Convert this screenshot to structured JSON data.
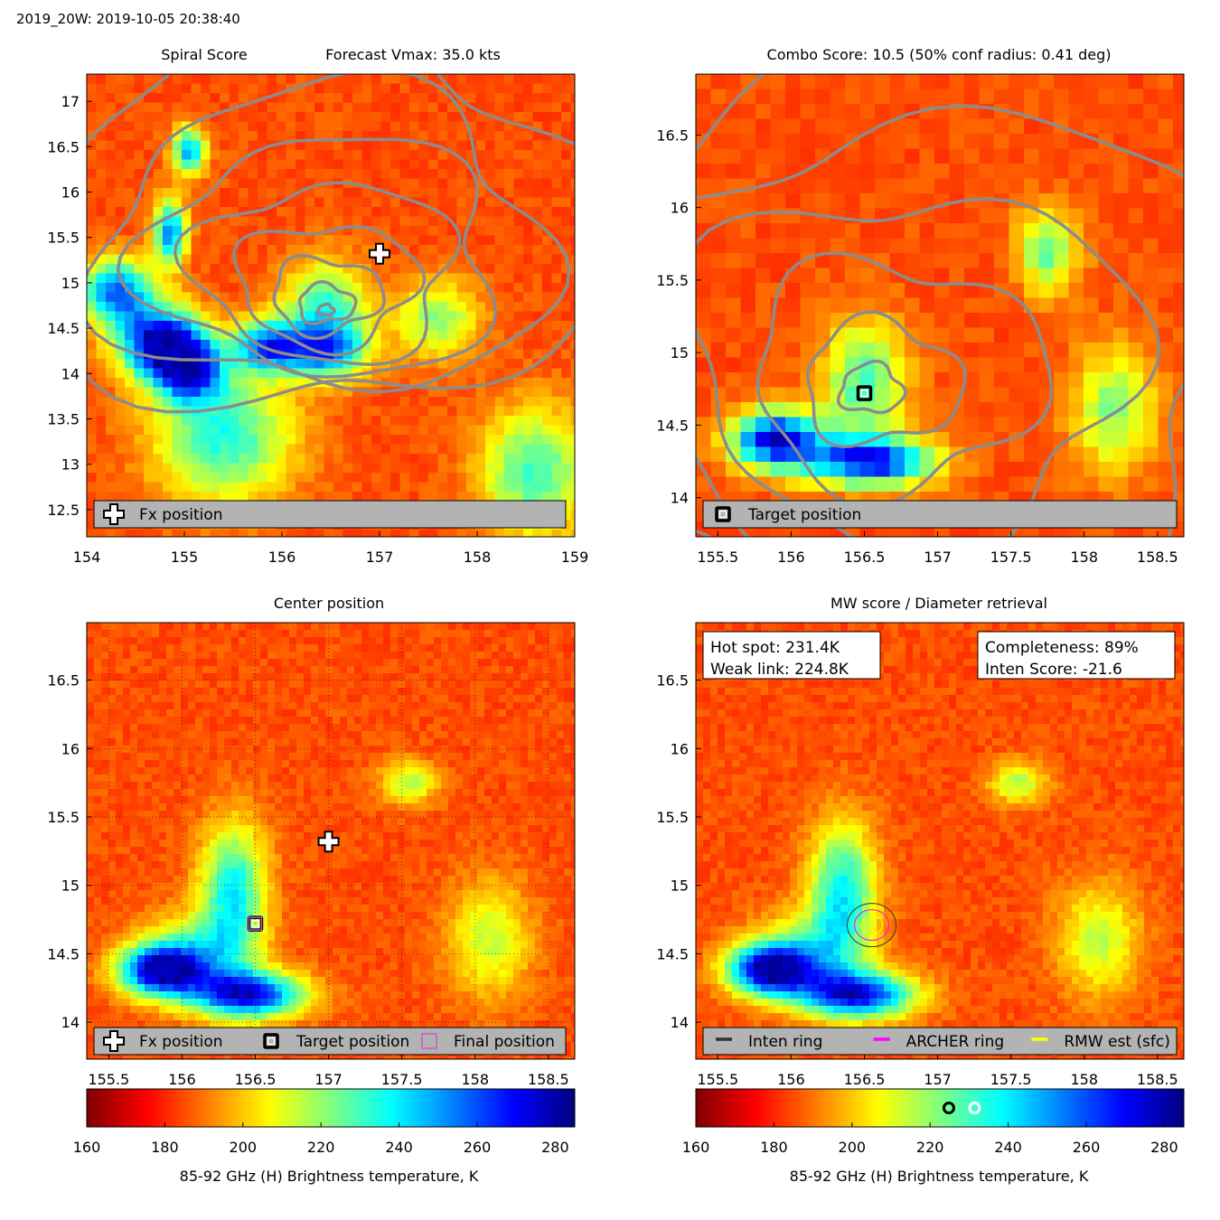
{
  "figure_title": "2019_20W: 2019-10-05 20:38:40",
  "colors": {
    "background": "#ffffff",
    "contour": "#8c8c8c",
    "legend_box": "#b3b3b3",
    "archer_ring": "#ff00ff",
    "rmw_est": "#ffff00",
    "inten_ring": "#333333",
    "final_marker": "#cc44cc"
  },
  "chart_data": [
    {
      "type": "heatmap",
      "panel": "top-left",
      "title": "Spiral Score",
      "title_right": "Forecast Vmax: 35.0 kts",
      "x_ticks": [
        "154",
        "155",
        "156",
        "157",
        "158",
        "159"
      ],
      "y_ticks": [
        "12.5",
        "13",
        "13.5",
        "14",
        "14.5",
        "15",
        "15.5",
        "16",
        "16.5",
        "17"
      ],
      "xlim": [
        154,
        159
      ],
      "ylim": [
        12.2,
        17.3
      ],
      "grid": false,
      "legend_placement": "bottom",
      "legend": [
        {
          "icon": "plus-icon",
          "label": "Fx position"
        }
      ],
      "markers": [
        {
          "type": "plus",
          "name": "Fx position",
          "x": 157.0,
          "y": 15.32
        }
      ],
      "hot_spots": [
        {
          "x": 154.75,
          "y": 14.35,
          "amp": 1.0,
          "sx": 0.3,
          "sy": 0.28
        },
        {
          "x": 155.85,
          "y": 14.3,
          "amp": 0.75,
          "sx": 0.25,
          "sy": 0.2
        },
        {
          "x": 156.45,
          "y": 14.25,
          "amp": 0.7,
          "sx": 0.3,
          "sy": 0.22
        },
        {
          "x": 155.05,
          "y": 14.05,
          "amp": 0.8,
          "sx": 0.25,
          "sy": 0.25
        },
        {
          "x": 154.3,
          "y": 14.9,
          "amp": 0.8,
          "sx": 0.25,
          "sy": 0.25
        },
        {
          "x": 155.4,
          "y": 13.3,
          "amp": 0.55,
          "sx": 0.5,
          "sy": 0.5
        },
        {
          "x": 156.45,
          "y": 14.75,
          "amp": 0.5,
          "sx": 0.3,
          "sy": 0.35
        },
        {
          "x": 155.05,
          "y": 16.45,
          "amp": 0.7,
          "sx": 0.12,
          "sy": 0.18
        },
        {
          "x": 154.85,
          "y": 15.55,
          "amp": 0.75,
          "sx": 0.12,
          "sy": 0.25
        },
        {
          "x": 157.6,
          "y": 14.6,
          "amp": 0.4,
          "sx": 0.3,
          "sy": 0.3
        },
        {
          "x": 158.6,
          "y": 12.9,
          "amp": 0.5,
          "sx": 0.4,
          "sy": 0.5
        }
      ],
      "contour_center": {
        "x": 156.45,
        "y": 14.67
      }
    },
    {
      "type": "heatmap",
      "panel": "top-right",
      "title": "Combo Score: 10.5  (50% conf radius: 0.41 deg)",
      "x_ticks": [
        "155.5",
        "156",
        "156.5",
        "157",
        "157.5",
        "158",
        "158.5"
      ],
      "y_ticks": [
        "14",
        "14.5",
        "15",
        "15.5",
        "16",
        "16.5"
      ],
      "xlim": [
        155.35,
        158.68
      ],
      "ylim": [
        13.73,
        16.92
      ],
      "grid": false,
      "legend_placement": "bottom",
      "legend": [
        {
          "icon": "square-icon",
          "label": "Target position"
        }
      ],
      "markers": [
        {
          "type": "square",
          "name": "Target position",
          "x": 156.5,
          "y": 14.72
        }
      ],
      "hot_spots": [
        {
          "x": 155.9,
          "y": 14.4,
          "amp": 1.0,
          "sx": 0.22,
          "sy": 0.14
        },
        {
          "x": 156.55,
          "y": 14.25,
          "amp": 0.9,
          "sx": 0.3,
          "sy": 0.12
        },
        {
          "x": 156.5,
          "y": 14.8,
          "amp": 0.5,
          "sx": 0.2,
          "sy": 0.3
        },
        {
          "x": 157.75,
          "y": 15.7,
          "amp": 0.45,
          "sx": 0.15,
          "sy": 0.2
        },
        {
          "x": 158.2,
          "y": 14.6,
          "amp": 0.4,
          "sx": 0.2,
          "sy": 0.3
        }
      ],
      "contour_center": {
        "x": 156.5,
        "y": 14.72
      }
    },
    {
      "type": "heatmap",
      "panel": "bottom-left",
      "title": "Center position",
      "x_ticks": [
        "155.5",
        "156",
        "156.5",
        "157",
        "157.5",
        "158",
        "158.5"
      ],
      "y_ticks": [
        "14",
        "14.5",
        "15",
        "15.5",
        "16",
        "16.5"
      ],
      "xlim": [
        155.35,
        158.68
      ],
      "ylim": [
        13.73,
        16.92
      ],
      "grid": true,
      "legend_placement": "bottom",
      "legend": [
        {
          "icon": "plus-icon",
          "label": "Fx position"
        },
        {
          "icon": "square-icon",
          "label": "Target position"
        },
        {
          "icon": "square-outline-icon",
          "label": "Final position"
        }
      ],
      "markers": [
        {
          "type": "plus",
          "name": "Fx position",
          "x": 157.0,
          "y": 15.32
        },
        {
          "type": "square",
          "name": "Target position",
          "x": 156.5,
          "y": 14.72
        },
        {
          "type": "final",
          "name": "Final position",
          "x": 156.5,
          "y": 14.72
        }
      ],
      "hot_spots": [
        {
          "x": 155.85,
          "y": 14.38,
          "amp": 1.0,
          "sx": 0.2,
          "sy": 0.13
        },
        {
          "x": 156.45,
          "y": 14.2,
          "amp": 0.95,
          "sx": 0.27,
          "sy": 0.12
        },
        {
          "x": 156.35,
          "y": 14.95,
          "amp": 0.6,
          "sx": 0.16,
          "sy": 0.35
        },
        {
          "x": 156.1,
          "y": 14.5,
          "amp": 0.4,
          "sx": 0.25,
          "sy": 0.2
        },
        {
          "x": 157.55,
          "y": 15.75,
          "amp": 0.35,
          "sx": 0.14,
          "sy": 0.11
        },
        {
          "x": 158.1,
          "y": 14.6,
          "amp": 0.32,
          "sx": 0.2,
          "sy": 0.3
        }
      ]
    },
    {
      "type": "heatmap",
      "panel": "bottom-right",
      "title": "MW score / Diameter retrieval",
      "x_ticks": [
        "155.5",
        "156",
        "156.5",
        "157",
        "157.5",
        "158",
        "158.5"
      ],
      "y_ticks": [
        "14",
        "14.5",
        "15",
        "15.5",
        "16",
        "16.5"
      ],
      "xlim": [
        155.35,
        158.68
      ],
      "ylim": [
        13.73,
        16.92
      ],
      "grid": false,
      "legend_placement": "bottom",
      "legend": [
        {
          "icon": "line-icon",
          "label": "Inten ring",
          "color": "#333333"
        },
        {
          "icon": "line-icon",
          "label": "ARCHER ring",
          "color": "#ff00ff"
        },
        {
          "icon": "line-icon",
          "label": "RMW est (sfc)",
          "color": "#ffff00"
        }
      ],
      "text_boxes": [
        {
          "lines": [
            "Hot spot: 231.4K",
            "Weak link: 224.8K"
          ],
          "placement": "top-left"
        },
        {
          "lines": [
            "Completeness: 89%",
            "Inten Score: -21.6"
          ],
          "placement": "top-right"
        }
      ],
      "rings": {
        "x": 156.55,
        "y": 14.71
      },
      "hot_spots": [
        {
          "x": 155.85,
          "y": 14.38,
          "amp": 1.0,
          "sx": 0.2,
          "sy": 0.13
        },
        {
          "x": 156.45,
          "y": 14.2,
          "amp": 0.95,
          "sx": 0.27,
          "sy": 0.12
        },
        {
          "x": 156.35,
          "y": 14.95,
          "amp": 0.6,
          "sx": 0.16,
          "sy": 0.35
        },
        {
          "x": 156.1,
          "y": 14.5,
          "amp": 0.4,
          "sx": 0.25,
          "sy": 0.2
        },
        {
          "x": 157.55,
          "y": 15.75,
          "amp": 0.35,
          "sx": 0.14,
          "sy": 0.11
        },
        {
          "x": 158.1,
          "y": 14.6,
          "amp": 0.32,
          "sx": 0.2,
          "sy": 0.3
        }
      ]
    }
  ],
  "colorbars": [
    {
      "panel": "bottom-left",
      "ticks": [
        "160",
        "180",
        "200",
        "220",
        "240",
        "260",
        "280"
      ],
      "range": [
        160,
        285
      ],
      "label": "85-92 GHz (H) Brightness temperature, K"
    },
    {
      "panel": "bottom-right",
      "ticks": [
        "160",
        "180",
        "200",
        "220",
        "240",
        "260",
        "280"
      ],
      "range": [
        160,
        285
      ],
      "label": "85-92 GHz (H) Brightness temperature, K",
      "markers": [
        {
          "value": 224.8,
          "label": "Weak link",
          "color": "#000000"
        },
        {
          "value": 231.4,
          "label": "Hot spot",
          "color": "#ffffff"
        }
      ]
    }
  ]
}
